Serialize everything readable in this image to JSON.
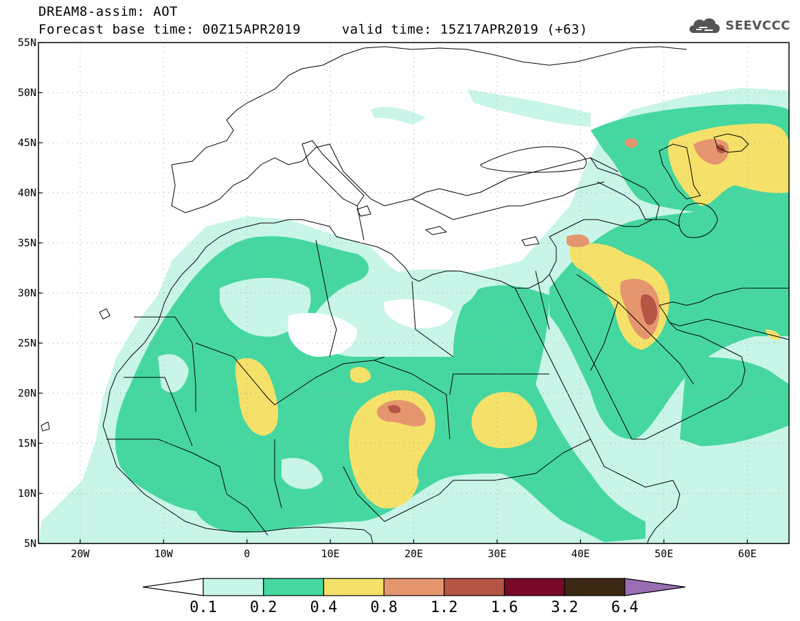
{
  "title": {
    "line1": "DREAM8-assim: AOT",
    "line2": "Forecast base time: 00Z15APR2019     valid time: 15Z17APR2019 (+63)"
  },
  "logo": {
    "text": "SEEVCCC",
    "icon": "cloud-logo-icon"
  },
  "map": {
    "lon_range": [
      -25,
      65
    ],
    "lat_range": [
      5,
      55
    ],
    "grid": "dotted",
    "lat_ticks": [
      {
        "v": 55,
        "label": "55N"
      },
      {
        "v": 50,
        "label": "50N"
      },
      {
        "v": 45,
        "label": "45N"
      },
      {
        "v": 40,
        "label": "40N"
      },
      {
        "v": 35,
        "label": "35N"
      },
      {
        "v": 30,
        "label": "30N"
      },
      {
        "v": 25,
        "label": "25N"
      },
      {
        "v": 20,
        "label": "20N"
      },
      {
        "v": 15,
        "label": "15N"
      },
      {
        "v": 10,
        "label": "10N"
      },
      {
        "v": 5,
        "label": "5N"
      }
    ],
    "lon_ticks": [
      {
        "v": -20,
        "label": "20W"
      },
      {
        "v": -10,
        "label": "10W"
      },
      {
        "v": 0,
        "label": "0"
      },
      {
        "v": 10,
        "label": "10E"
      },
      {
        "v": 20,
        "label": "20E"
      },
      {
        "v": 30,
        "label": "30E"
      },
      {
        "v": 40,
        "label": "40E"
      },
      {
        "v": 50,
        "label": "50E"
      },
      {
        "v": 60,
        "label": "60E"
      }
    ]
  },
  "colorbar": {
    "levels": [
      "0.1",
      "0.2",
      "0.4",
      "0.8",
      "1.2",
      "1.6",
      "3.2",
      "6.4"
    ],
    "colors": [
      "#c8f5e8",
      "#46d7a0",
      "#f5e169",
      "#e6966e",
      "#b45546",
      "#780a28",
      "#3c2814"
    ],
    "under_color": "#ffffff",
    "over_color": "#9b6eb4"
  }
}
